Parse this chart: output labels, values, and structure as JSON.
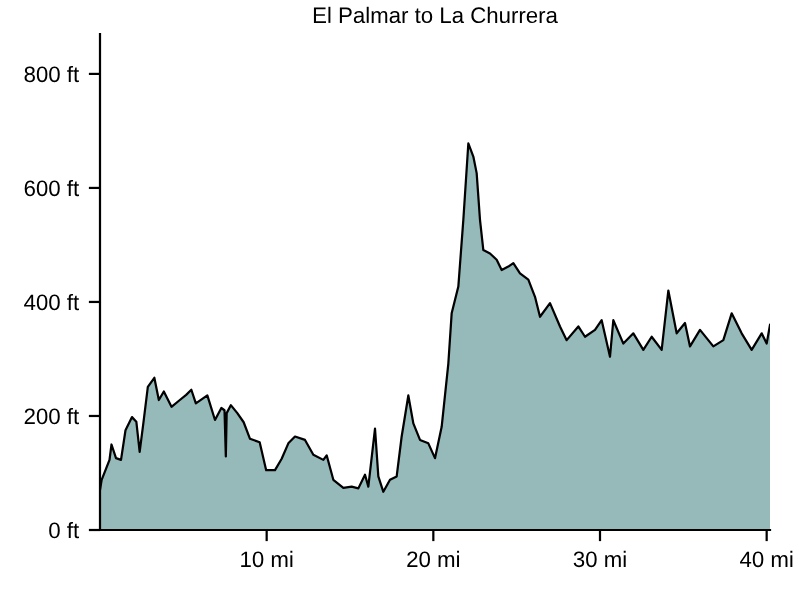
{
  "chart_data": {
    "type": "area",
    "title": "El Palmar to La Churrera",
    "x": [
      0,
      0.1,
      0.57,
      0.69,
      0.96,
      1.26,
      1.53,
      1.92,
      2.18,
      2.38,
      2.6,
      2.87,
      3.26,
      3.53,
      3.83,
      4.29,
      4.79,
      5.17,
      5.48,
      5.75,
      6.44,
      6.59,
      6.9,
      7.28,
      7.47,
      7.55,
      7.6,
      7.85,
      8.24,
      8.62,
      9.0,
      9.58,
      9.97,
      10.5,
      10.9,
      11.3,
      11.7,
      12.3,
      12.8,
      13.4,
      13.6,
      14.0,
      14.6,
      15.1,
      15.5,
      15.9,
      16.1,
      16.5,
      16.7,
      17.0,
      17.4,
      17.8,
      18.1,
      18.5,
      18.8,
      19.2,
      19.7,
      20.1,
      20.5,
      20.9,
      21.1,
      21.5,
      21.8,
      22.1,
      22.4,
      22.6,
      22.8,
      23.0,
      23.4,
      23.8,
      24.1,
      24.5,
      24.8,
      25.2,
      25.7,
      26.1,
      26.4,
      27.0,
      27.6,
      28.0,
      28.7,
      29.1,
      29.7,
      30.1,
      30.6,
      30.8,
      31.4,
      32.0,
      32.6,
      33.1,
      33.7,
      34.1,
      34.6,
      35.1,
      35.4,
      36.0,
      36.8,
      37.4,
      37.9,
      38.5,
      39.1,
      39.7,
      40.0,
      40.2
    ],
    "series": [
      {
        "color": "#96baba",
        "values": [
          70,
          88,
          123,
          150,
          126,
          123,
          175,
          198,
          190,
          137,
          187,
          251,
          267,
          228,
          243,
          216,
          228,
          237,
          246,
          222,
          236,
          222,
          193,
          214,
          210,
          129,
          205,
          219,
          205,
          189,
          160,
          154,
          105,
          105,
          125,
          152,
          164,
          158,
          132,
          123,
          131,
          88,
          74,
          76,
          73,
          97,
          76,
          178,
          94,
          67,
          88,
          94,
          164,
          236,
          187,
          158,
          152,
          126,
          181,
          292,
          380,
          427,
          544,
          678,
          655,
          626,
          544,
          491,
          485,
          474,
          456,
          462,
          468,
          450,
          439,
          409,
          374,
          398,
          357,
          333,
          357,
          339,
          351,
          368,
          304,
          368,
          327,
          345,
          316,
          339,
          316,
          420,
          345,
          363,
          322,
          351,
          322,
          333,
          380,
          345,
          316,
          345,
          327,
          360
        ]
      }
    ],
    "xlim": [
      0,
      40.2
    ],
    "ylim": [
      0,
      870
    ],
    "xticks": [
      {
        "value": 10,
        "label": "10 mi"
      },
      {
        "value": 20,
        "label": "20 mi"
      },
      {
        "value": 30,
        "label": "30 mi"
      },
      {
        "value": 40,
        "label": "40 mi"
      }
    ],
    "yticks": [
      {
        "value": 0,
        "label": "0 ft"
      },
      {
        "value": 200,
        "label": "200 ft"
      },
      {
        "value": 400,
        "label": "400 ft"
      },
      {
        "value": 600,
        "label": "600 ft"
      },
      {
        "value": 800,
        "label": "800 ft"
      }
    ],
    "grid": false
  }
}
